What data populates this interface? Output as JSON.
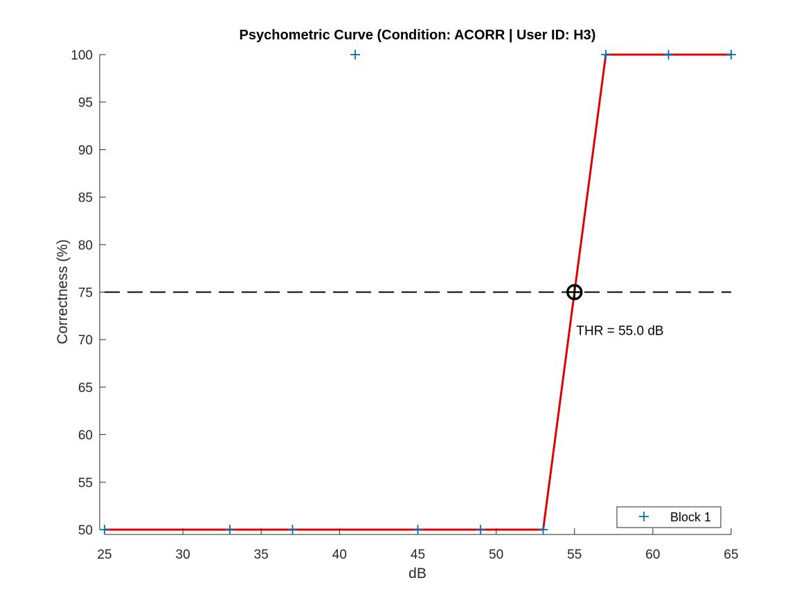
{
  "chart_data": {
    "type": "line",
    "title": "Psychometric Curve (Condition: ACORR | User ID: H3)",
    "xlabel": "dB",
    "ylabel": "Correctness (%)",
    "xlim": [
      25,
      65
    ],
    "ylim": [
      50,
      100
    ],
    "xticks": [
      25,
      30,
      35,
      40,
      45,
      50,
      55,
      60,
      65
    ],
    "yticks": [
      50,
      55,
      60,
      65,
      70,
      75,
      80,
      85,
      90,
      95,
      100
    ],
    "grid": false,
    "series": [
      {
        "name": "Block 1",
        "kind": "scatter",
        "marker": "plus",
        "color": "#0072BD",
        "x": [
          25,
          33,
          37,
          41,
          45,
          49,
          53,
          55,
          57,
          61,
          65
        ],
        "y": [
          50,
          50,
          50,
          100,
          50,
          50,
          50,
          75,
          100,
          100,
          100
        ]
      },
      {
        "kind": "line",
        "color": "#E00000",
        "x": [
          25,
          53,
          57,
          65
        ],
        "y": [
          50,
          50,
          100,
          100
        ]
      }
    ],
    "reference_line": {
      "y": 75,
      "style": "dashed",
      "color": "#000000"
    },
    "threshold_marker": {
      "x": 55,
      "y": 75,
      "color": "#000000"
    },
    "annotation": {
      "text": "THR = 55.0 dB",
      "x": 56,
      "y": 71
    },
    "legend": {
      "position": "bottom-right",
      "entries": [
        "Block 1"
      ]
    }
  }
}
